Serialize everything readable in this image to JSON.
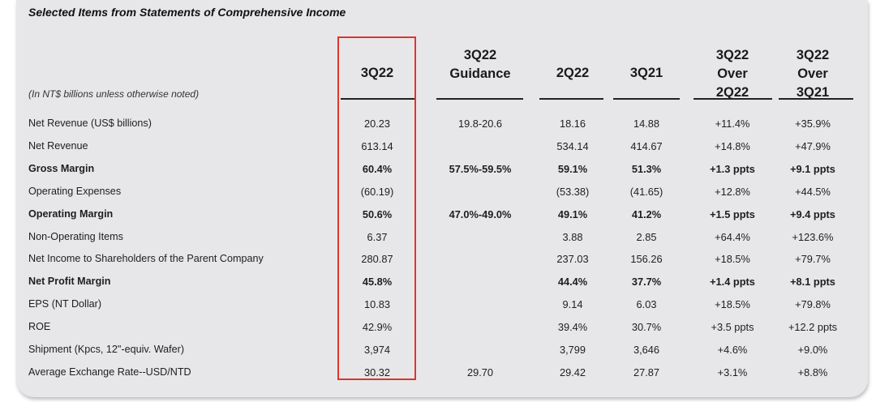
{
  "table_title": "Selected Items from Statements of Comprehensive Income",
  "unit_note": "(In NT$ billions unless otherwise noted)",
  "columns": [
    {
      "line1": "",
      "line2": "3Q22",
      "line3": ""
    },
    {
      "line1": "3Q22",
      "line2": "Guidance",
      "line3": ""
    },
    {
      "line1": "",
      "line2": "2Q22",
      "line3": ""
    },
    {
      "line1": "",
      "line2": "3Q21",
      "line3": ""
    },
    {
      "line1": "3Q22",
      "line2": "Over",
      "line3": "2Q22"
    },
    {
      "line1": "3Q22",
      "line2": "Over",
      "line3": "3Q21"
    }
  ],
  "rows": [
    {
      "label": "Net Revenue (US$ billions)",
      "bold": false,
      "values": [
        "20.23",
        "19.8-20.6",
        "18.16",
        "14.88",
        "+11.4%",
        "+35.9%"
      ]
    },
    {
      "label": "Net Revenue",
      "bold": false,
      "values": [
        "613.14",
        "",
        "534.14",
        "414.67",
        "+14.8%",
        "+47.9%"
      ]
    },
    {
      "label": "Gross Margin",
      "bold": true,
      "values": [
        "60.4%",
        "57.5%-59.5%",
        "59.1%",
        "51.3%",
        "+1.3 ppts",
        "+9.1 ppts"
      ]
    },
    {
      "label": "Operating Expenses",
      "bold": false,
      "values": [
        "(60.19)",
        "",
        "(53.38)",
        "(41.65)",
        "+12.8%",
        "+44.5%"
      ]
    },
    {
      "label": "Operating Margin",
      "bold": true,
      "values": [
        "50.6%",
        "47.0%-49.0%",
        "49.1%",
        "41.2%",
        "+1.5 ppts",
        "+9.4 ppts"
      ]
    },
    {
      "label": "Non-Operating Items",
      "bold": false,
      "values": [
        "6.37",
        "",
        "3.88",
        "2.85",
        "+64.4%",
        "+123.6%"
      ]
    },
    {
      "label": "Net Income to Shareholders of the Parent Company",
      "bold": false,
      "values": [
        "280.87",
        "",
        "237.03",
        "156.26",
        "+18.5%",
        "+79.7%"
      ]
    },
    {
      "label": "Net Profit Margin",
      "bold": true,
      "values": [
        "45.8%",
        "",
        "44.4%",
        "37.7%",
        "+1.4 ppts",
        "+8.1 ppts"
      ]
    },
    {
      "label": "EPS (NT Dollar)",
      "bold": false,
      "values": [
        "10.83",
        "",
        "9.14",
        "6.03",
        "+18.5%",
        "+79.8%"
      ]
    },
    {
      "label": "ROE",
      "bold": false,
      "values": [
        "42.9%",
        "",
        "39.4%",
        "30.7%",
        "+3.5 ppts",
        "+12.2 ppts"
      ]
    },
    {
      "label": "Shipment (Kpcs, 12\"-equiv. Wafer)",
      "bold": false,
      "values": [
        "3,974",
        "",
        "3,799",
        "3,646",
        "+4.6%",
        "+9.0%"
      ]
    },
    {
      "label": "Average Exchange Rate--USD/NTD",
      "bold": false,
      "values": [
        "30.32",
        "29.70",
        "29.42",
        "27.87",
        "+3.1%",
        "+8.8%"
      ]
    }
  ],
  "colors": {
    "panel": "#e7e7e9",
    "highlight_border": "#e0342c",
    "text": "#1e1e1e"
  }
}
